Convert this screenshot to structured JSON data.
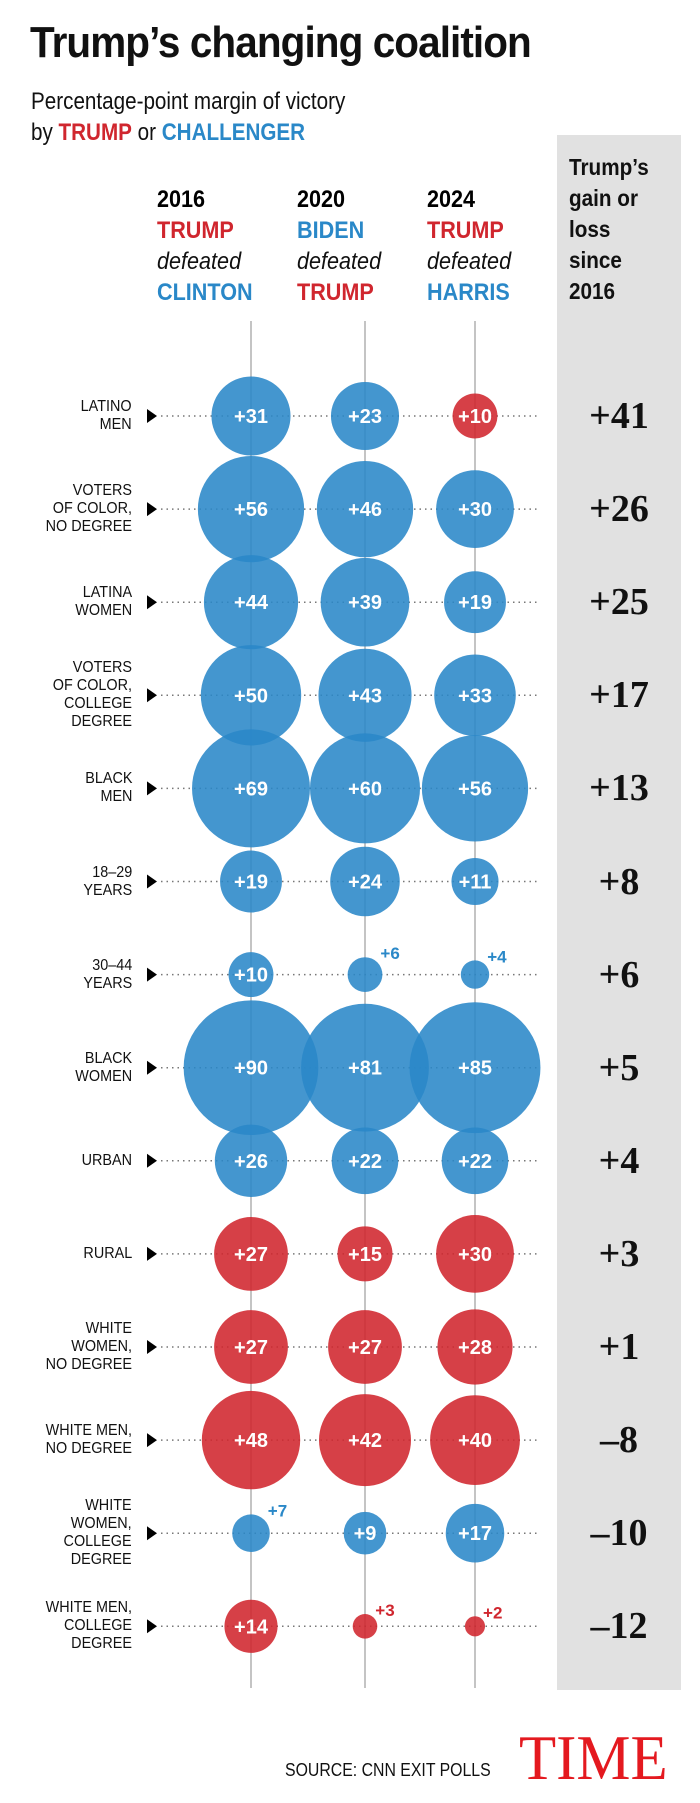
{
  "title": "Trump’s changing coalition",
  "subtitle": {
    "line1": "Percentage-point margin of victory",
    "by": "by",
    "trump": "TRUMP",
    "or": "or",
    "challenger": "CHALLENGER"
  },
  "colors": {
    "trump": "#d0262e",
    "challenger": "#2a88c8",
    "panel": "#e1e1e1",
    "logo": "#e4191f"
  },
  "panel_header": [
    "Trump’s",
    "gain or",
    "loss",
    "since",
    "2016"
  ],
  "columns": [
    {
      "year": "2016",
      "winner": "TRUMP",
      "winner_party": "trump",
      "verb": "defeated",
      "loser": "CLINTON",
      "loser_party": "challenger"
    },
    {
      "year": "2020",
      "winner": "BIDEN",
      "winner_party": "challenger",
      "verb": "defeated",
      "loser": "TRUMP",
      "loser_party": "trump"
    },
    {
      "year": "2024",
      "winner": "TRUMP",
      "winner_party": "trump",
      "verb": "defeated",
      "loser": "HARRIS",
      "loser_party": "challenger"
    }
  ],
  "chart_data": {
    "type": "bubble-table",
    "categories": [
      "2016",
      "2020",
      "2024"
    ],
    "rows": [
      {
        "label": [
          "LATINO",
          "MEN"
        ],
        "values": [
          {
            "v": 31,
            "p": "challenger"
          },
          {
            "v": 23,
            "p": "challenger"
          },
          {
            "v": 10,
            "p": "trump"
          }
        ],
        "change": "+41"
      },
      {
        "label": [
          "VOTERS",
          "OF COLOR,",
          "NO DEGREE"
        ],
        "values": [
          {
            "v": 56,
            "p": "challenger"
          },
          {
            "v": 46,
            "p": "challenger"
          },
          {
            "v": 30,
            "p": "challenger"
          }
        ],
        "change": "+26"
      },
      {
        "label": [
          "LATINA",
          "WOMEN"
        ],
        "values": [
          {
            "v": 44,
            "p": "challenger"
          },
          {
            "v": 39,
            "p": "challenger"
          },
          {
            "v": 19,
            "p": "challenger"
          }
        ],
        "change": "+25"
      },
      {
        "label": [
          "VOTERS",
          "OF COLOR,",
          "COLLEGE",
          "DEGREE"
        ],
        "values": [
          {
            "v": 50,
            "p": "challenger"
          },
          {
            "v": 43,
            "p": "challenger"
          },
          {
            "v": 33,
            "p": "challenger"
          }
        ],
        "change": "+17"
      },
      {
        "label": [
          "BLACK",
          "MEN"
        ],
        "values": [
          {
            "v": 69,
            "p": "challenger"
          },
          {
            "v": 60,
            "p": "challenger"
          },
          {
            "v": 56,
            "p": "challenger"
          }
        ],
        "change": "+13"
      },
      {
        "label": [
          "18–29",
          "YEARS"
        ],
        "values": [
          {
            "v": 19,
            "p": "challenger"
          },
          {
            "v": 24,
            "p": "challenger"
          },
          {
            "v": 11,
            "p": "challenger"
          }
        ],
        "change": "+8"
      },
      {
        "label": [
          "30–44",
          "YEARS"
        ],
        "values": [
          {
            "v": 10,
            "p": "challenger"
          },
          {
            "v": 6,
            "p": "challenger"
          },
          {
            "v": 4,
            "p": "challenger"
          }
        ],
        "change": "+6"
      },
      {
        "label": [
          "BLACK",
          "WOMEN"
        ],
        "values": [
          {
            "v": 90,
            "p": "challenger"
          },
          {
            "v": 81,
            "p": "challenger"
          },
          {
            "v": 85,
            "p": "challenger"
          }
        ],
        "change": "+5"
      },
      {
        "label": [
          "URBAN"
        ],
        "values": [
          {
            "v": 26,
            "p": "challenger"
          },
          {
            "v": 22,
            "p": "challenger"
          },
          {
            "v": 22,
            "p": "challenger"
          }
        ],
        "change": "+4"
      },
      {
        "label": [
          "RURAL"
        ],
        "values": [
          {
            "v": 27,
            "p": "trump"
          },
          {
            "v": 15,
            "p": "trump"
          },
          {
            "v": 30,
            "p": "trump"
          }
        ],
        "change": "+3"
      },
      {
        "label": [
          "WHITE",
          "WOMEN,",
          "NO DEGREE"
        ],
        "values": [
          {
            "v": 27,
            "p": "trump"
          },
          {
            "v": 27,
            "p": "trump"
          },
          {
            "v": 28,
            "p": "trump"
          }
        ],
        "change": "+1"
      },
      {
        "label": [
          "WHITE MEN,",
          "NO DEGREE"
        ],
        "values": [
          {
            "v": 48,
            "p": "trump"
          },
          {
            "v": 42,
            "p": "trump"
          },
          {
            "v": 40,
            "p": "trump"
          }
        ],
        "change": "–8"
      },
      {
        "label": [
          "WHITE",
          "WOMEN,",
          "COLLEGE",
          "DEGREE"
        ],
        "values": [
          {
            "v": 7,
            "p": "challenger"
          },
          {
            "v": 9,
            "p": "challenger"
          },
          {
            "v": 17,
            "p": "challenger"
          }
        ],
        "change": "–10"
      },
      {
        "label": [
          "WHITE MEN,",
          "COLLEGE",
          "DEGREE"
        ],
        "values": [
          {
            "v": 14,
            "p": "trump"
          },
          {
            "v": 3,
            "p": "trump"
          },
          {
            "v": 2,
            "p": "trump"
          }
        ],
        "change": "–12"
      }
    ]
  },
  "source": "SOURCE: CNN EXIT POLLS",
  "logo": "TIME"
}
